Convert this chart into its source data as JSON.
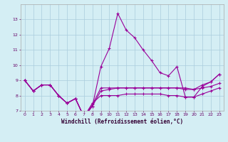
{
  "xlabel": "Windchill (Refroidissement éolien,°C)",
  "x": [
    0,
    1,
    2,
    3,
    4,
    5,
    6,
    7,
    8,
    9,
    10,
    11,
    12,
    13,
    14,
    15,
    16,
    17,
    18,
    19,
    20,
    21,
    22,
    23
  ],
  "line1": [
    9.0,
    8.3,
    8.7,
    8.7,
    8.0,
    7.5,
    7.8,
    6.6,
    7.3,
    9.9,
    11.1,
    13.4,
    12.3,
    11.8,
    11.0,
    10.3,
    9.5,
    9.3,
    9.9,
    7.9,
    7.9,
    8.6,
    8.9,
    9.4
  ],
  "line2": [
    9.0,
    8.3,
    8.7,
    8.7,
    8.0,
    7.5,
    7.8,
    6.6,
    7.4,
    8.5,
    8.5,
    8.5,
    8.5,
    8.5,
    8.5,
    8.5,
    8.5,
    8.5,
    8.5,
    8.4,
    8.4,
    8.5,
    8.6,
    8.8
  ],
  "line3": [
    9.0,
    8.3,
    8.7,
    8.7,
    8.0,
    7.5,
    7.8,
    6.6,
    7.5,
    8.0,
    8.0,
    8.0,
    8.1,
    8.1,
    8.1,
    8.1,
    8.1,
    8.0,
    8.0,
    7.9,
    7.9,
    8.1,
    8.3,
    8.5
  ],
  "line4": [
    9.0,
    8.3,
    8.7,
    8.7,
    8.0,
    7.5,
    7.8,
    6.6,
    7.3,
    8.3,
    8.4,
    8.5,
    8.5,
    8.5,
    8.5,
    8.5,
    8.5,
    8.5,
    8.5,
    8.5,
    8.4,
    8.7,
    8.9,
    9.4
  ],
  "line_color": "#990099",
  "bg_color": "#d4eef4",
  "grid_color": "#aaccdd",
  "ylim": [
    7,
    14
  ],
  "xlim": [
    -0.5,
    23.5
  ],
  "yticks": [
    7,
    8,
    9,
    10,
    11,
    12,
    13
  ],
  "xticks": [
    0,
    1,
    2,
    3,
    4,
    5,
    6,
    7,
    8,
    9,
    10,
    11,
    12,
    13,
    14,
    15,
    16,
    17,
    18,
    19,
    20,
    21,
    22,
    23
  ],
  "tick_fontsize": 4.5,
  "xlabel_fontsize": 5.5
}
